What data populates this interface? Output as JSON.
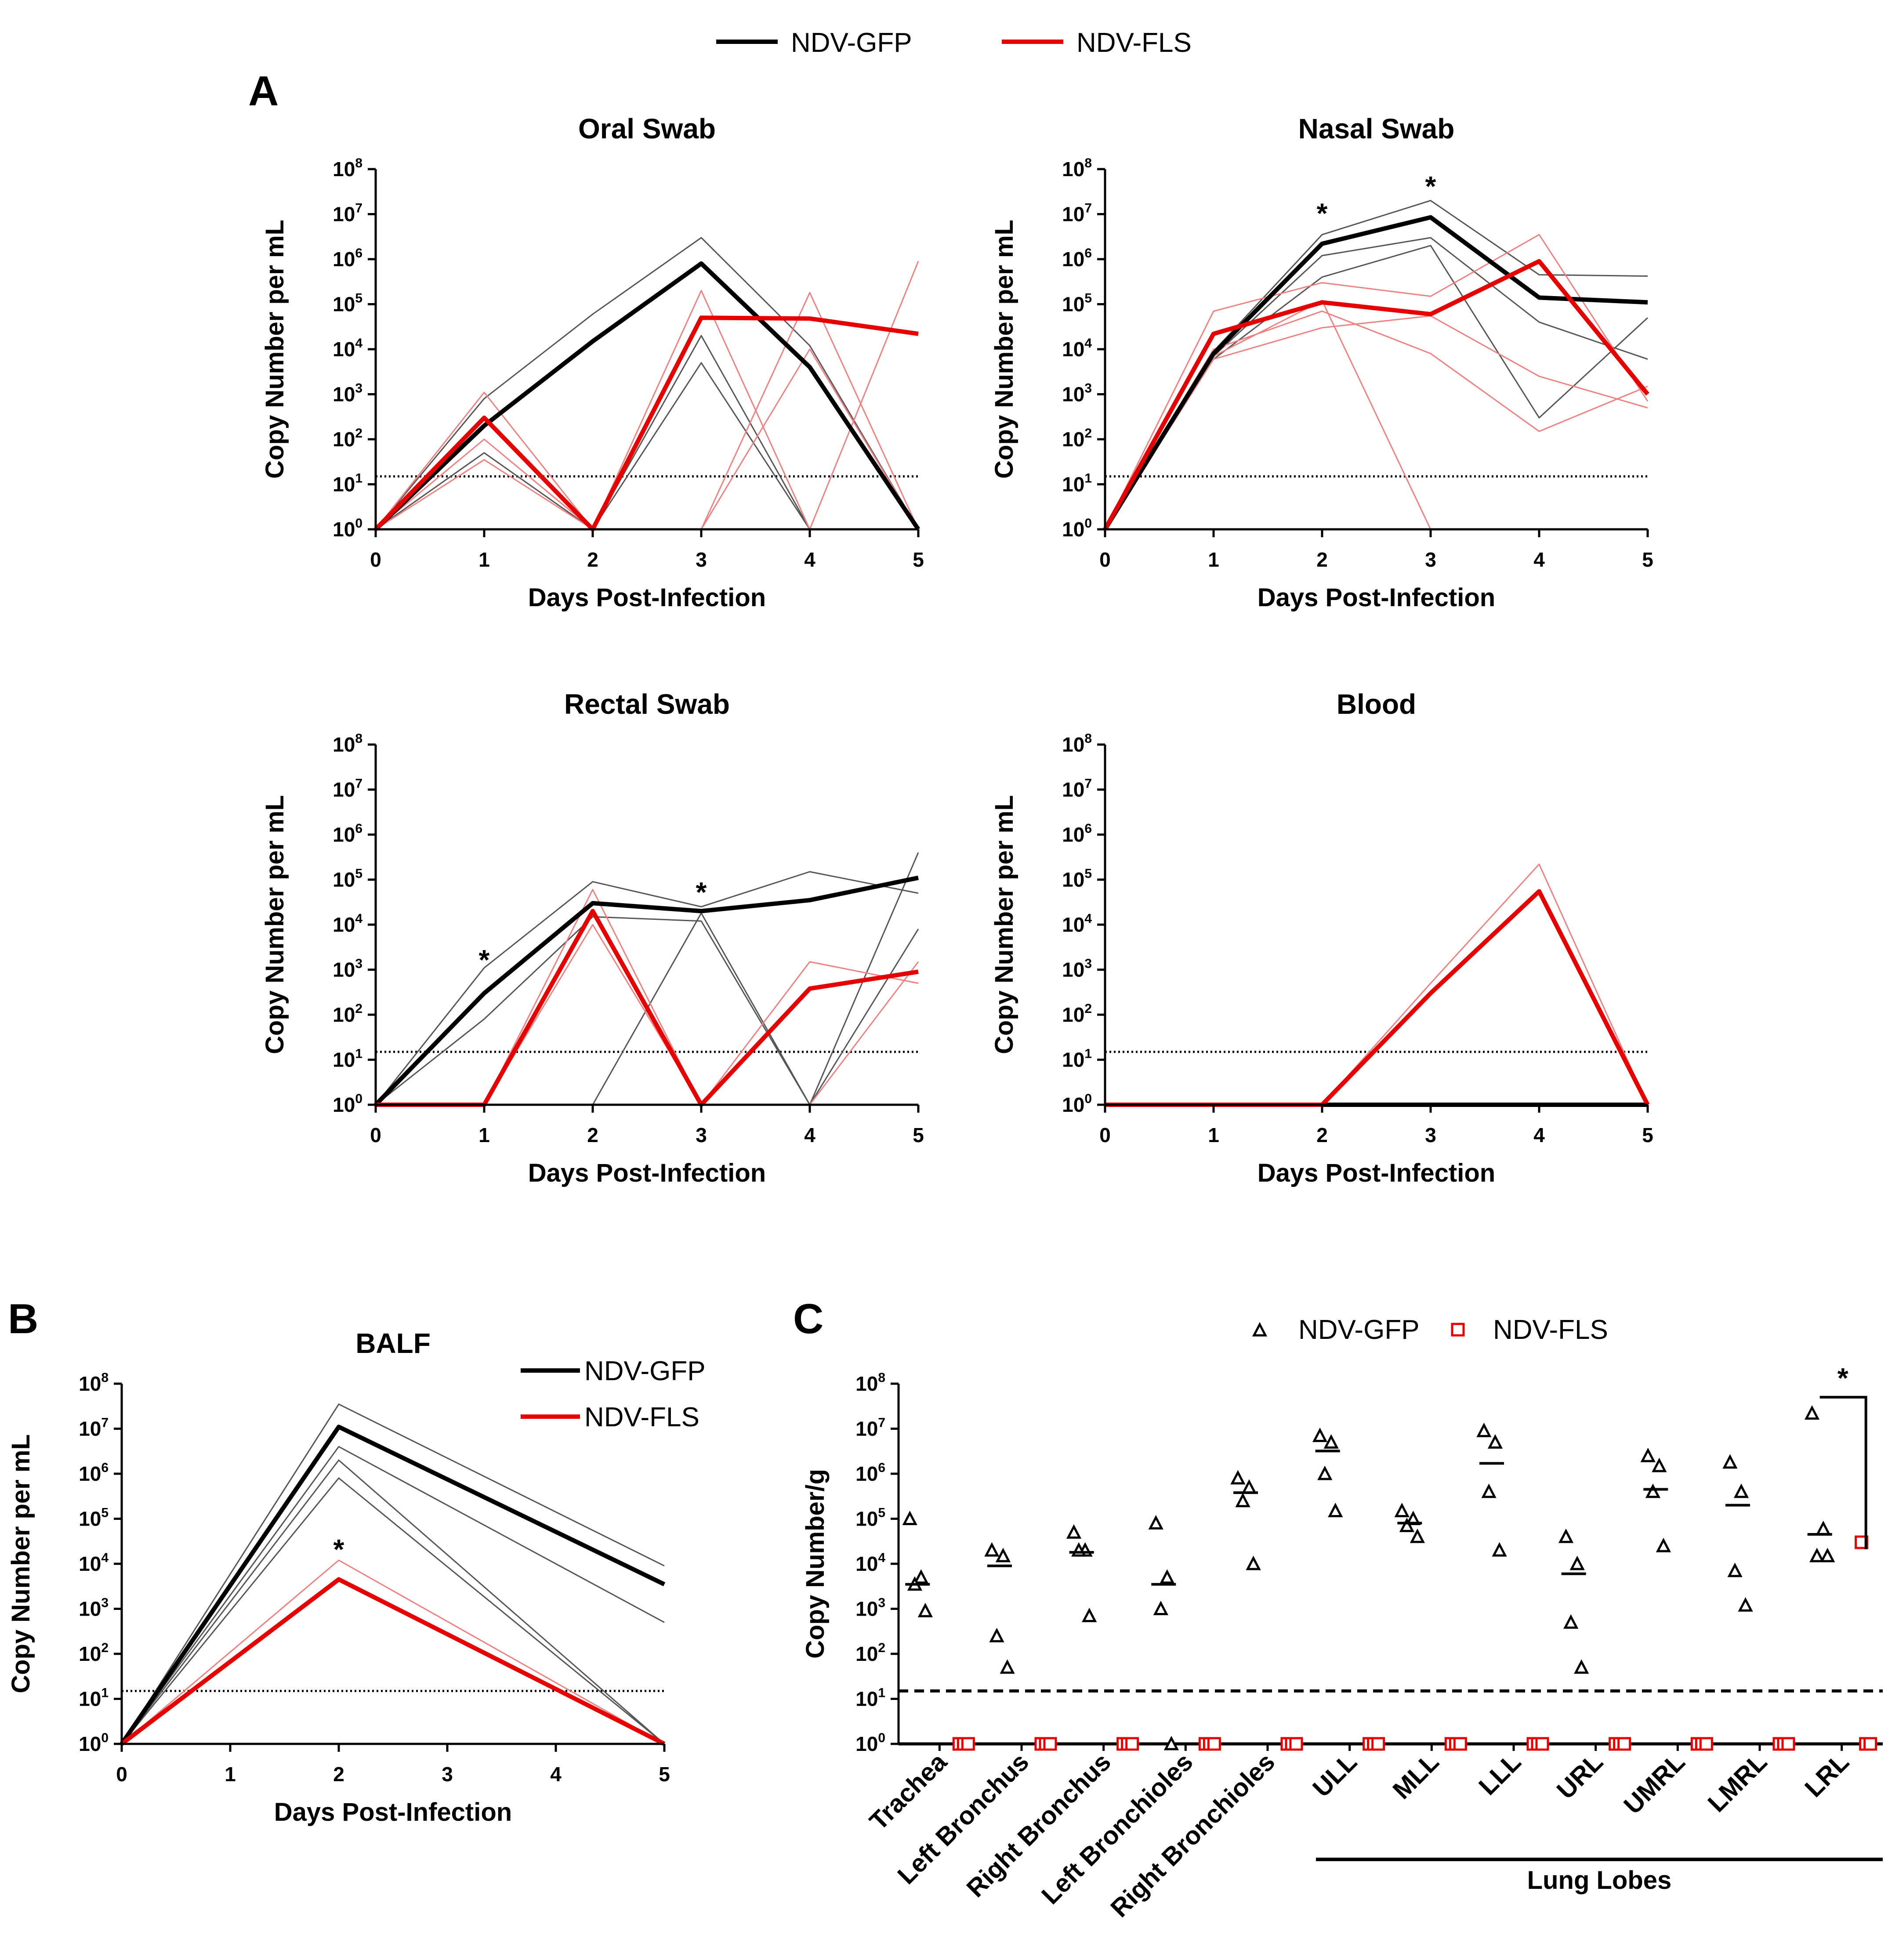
{
  "figure": {
    "panel_letters": {
      "a": "A",
      "b": "B",
      "c": "C"
    },
    "legend": {
      "top": [
        {
          "label": "NDV-GFP",
          "color": "#000000"
        },
        {
          "label": "NDV-FLS",
          "color": "#e60000"
        }
      ],
      "balf": [
        {
          "label": "NDV-GFP",
          "color": "#000000"
        },
        {
          "label": "NDV-FLS",
          "color": "#e60000"
        }
      ],
      "tissue": [
        {
          "label": "NDV-GFP",
          "color": "#000000",
          "marker": "triangle"
        },
        {
          "label": "NDV-FLS",
          "color": "#e60000",
          "marker": "square"
        }
      ]
    },
    "lung_lobes_label": "Lung Lobes",
    "colors": {
      "gfp": "#000000",
      "fls": "#e60000",
      "gfp_thin": "#555555",
      "fls_thin": "#f08080"
    }
  },
  "chart_data": [
    {
      "id": "oral",
      "type": "line",
      "title": "Oral Swab",
      "xlabel": "Days Post-Infection",
      "ylabel": "Copy Number per mL",
      "yscale": "log10",
      "ylim_exp": [
        0,
        8
      ],
      "xlim": [
        0,
        5
      ],
      "x": [
        0,
        1,
        2,
        3,
        4,
        5
      ],
      "limit_of_detection": 15,
      "series": [
        {
          "name": "NDV-GFP mean",
          "group": "gfp",
          "values": [
            1,
            200,
            15000,
            800000,
            4000,
            1
          ]
        },
        {
          "name": "NDV-FLS mean",
          "group": "fls",
          "values": [
            1,
            300,
            1,
            50000,
            48000,
            22000
          ]
        },
        {
          "name": "NDV-GFP subject",
          "group": "gfp",
          "individual": true,
          "values": [
            1,
            800,
            60000,
            3000000,
            12000,
            1
          ]
        },
        {
          "name": "NDV-GFP subject",
          "group": "gfp",
          "individual": true,
          "values": [
            1,
            50,
            1,
            20000,
            1,
            1
          ]
        },
        {
          "name": "NDV-GFP subject",
          "group": "gfp",
          "individual": true,
          "values": [
            1,
            1,
            1,
            5000,
            1,
            1
          ]
        },
        {
          "name": "NDV-FLS subject",
          "group": "fls",
          "individual": true,
          "values": [
            1,
            1100,
            1,
            200000,
            1,
            1
          ]
        },
        {
          "name": "NDV-FLS subject",
          "group": "fls",
          "individual": true,
          "values": [
            1,
            35,
            1,
            1,
            180000,
            1
          ]
        },
        {
          "name": "NDV-FLS subject",
          "group": "fls",
          "individual": true,
          "values": [
            1,
            100,
            1,
            1,
            10000,
            1
          ]
        },
        {
          "name": "NDV-FLS subject",
          "group": "fls",
          "individual": true,
          "values": [
            1,
            1,
            1,
            1,
            1,
            900000
          ]
        }
      ],
      "annotations": []
    },
    {
      "id": "nasal",
      "type": "line",
      "title": "Nasal Swab",
      "xlabel": "Days Post-Infection",
      "ylabel": "Copy Number per mL",
      "yscale": "log10",
      "ylim_exp": [
        0,
        8
      ],
      "xlim": [
        0,
        5
      ],
      "x": [
        0,
        1,
        2,
        3,
        4,
        5
      ],
      "limit_of_detection": 15,
      "series": [
        {
          "name": "NDV-GFP mean",
          "group": "gfp",
          "values": [
            1,
            8000,
            2200000,
            8500000,
            140000,
            110000
          ]
        },
        {
          "name": "NDV-FLS mean",
          "group": "fls",
          "values": [
            1,
            22000,
            110000,
            60000,
            900000,
            1000
          ]
        },
        {
          "name": "NDV-GFP subject",
          "group": "gfp",
          "individual": true,
          "values": [
            1,
            9000,
            3500000,
            20000000,
            450000,
            420000
          ]
        },
        {
          "name": "NDV-GFP subject",
          "group": "gfp",
          "individual": true,
          "values": [
            1,
            7000,
            1200000,
            3000000,
            40000,
            6000
          ]
        },
        {
          "name": "NDV-GFP subject",
          "group": "gfp",
          "individual": true,
          "values": [
            1,
            6000,
            400000,
            2000000,
            300,
            50000
          ]
        },
        {
          "name": "NDV-FLS subject",
          "group": "fls",
          "individual": true,
          "values": [
            1,
            70000,
            300000,
            150000,
            3500000,
            700
          ]
        },
        {
          "name": "NDV-FLS subject",
          "group": "fls",
          "individual": true,
          "values": [
            1,
            10000,
            70000,
            8000,
            150,
            1500
          ]
        },
        {
          "name": "NDV-FLS subject",
          "group": "fls",
          "individual": true,
          "values": [
            1,
            6000,
            30000,
            55000,
            2500,
            500
          ]
        },
        {
          "name": "NDV-FLS subject",
          "group": "fls",
          "individual": true,
          "values": [
            1,
            7000,
            120000,
            1,
            1,
            1
          ]
        }
      ],
      "annotations": [
        {
          "x": 2,
          "text": "*",
          "exp": 7.1
        },
        {
          "x": 3,
          "text": "*",
          "exp": 7.7
        }
      ]
    },
    {
      "id": "rectal",
      "type": "line",
      "title": "Rectal Swab",
      "xlabel": "Days Post-Infection",
      "ylabel": "Copy Number per mL",
      "yscale": "log10",
      "ylim_exp": [
        0,
        8
      ],
      "xlim": [
        0,
        5
      ],
      "x": [
        0,
        1,
        2,
        3,
        4,
        5
      ],
      "limit_of_detection": 15,
      "series": [
        {
          "name": "NDV-GFP mean",
          "group": "gfp",
          "values": [
            1,
            300,
            30000,
            20000,
            35000,
            110000
          ]
        },
        {
          "name": "NDV-FLS mean",
          "group": "fls",
          "values": [
            1,
            1,
            20000,
            1,
            380,
            900
          ]
        },
        {
          "name": "NDV-GFP subject",
          "group": "gfp",
          "individual": true,
          "values": [
            1,
            1100,
            90000,
            25000,
            150000,
            50000
          ]
        },
        {
          "name": "NDV-GFP subject",
          "group": "gfp",
          "individual": true,
          "values": [
            1,
            80,
            15000,
            12000,
            1,
            400000
          ]
        },
        {
          "name": "NDV-GFP subject",
          "group": "gfp",
          "individual": true,
          "values": [
            1,
            1,
            1,
            18000,
            1,
            8000
          ]
        },
        {
          "name": "NDV-FLS subject",
          "group": "fls",
          "individual": true,
          "values": [
            1,
            1,
            60000,
            1,
            1500,
            500
          ]
        },
        {
          "name": "NDV-FLS subject",
          "group": "fls",
          "individual": true,
          "values": [
            1,
            1,
            10000,
            1,
            1,
            1500
          ]
        },
        {
          "name": "NDV-FLS subject",
          "group": "fls",
          "individual": true,
          "values": [
            1,
            1,
            1,
            1,
            1,
            1
          ]
        }
      ],
      "annotations": [
        {
          "x": 1,
          "text": "*",
          "exp": 3.3
        },
        {
          "x": 3,
          "text": "*",
          "exp": 4.8
        }
      ]
    },
    {
      "id": "blood",
      "type": "line",
      "title": "Blood",
      "xlabel": "Days Post-Infection",
      "ylabel": "Copy Number per mL",
      "yscale": "log10",
      "ylim_exp": [
        0,
        8
      ],
      "xlim": [
        0,
        5
      ],
      "x": [
        0,
        1,
        2,
        3,
        4,
        5
      ],
      "limit_of_detection": 15,
      "series": [
        {
          "name": "NDV-GFP mean",
          "group": "gfp",
          "values": [
            1,
            1,
            1,
            1,
            1,
            1
          ]
        },
        {
          "name": "NDV-FLS mean",
          "group": "fls",
          "values": [
            1,
            1,
            1,
            300,
            55000,
            1
          ]
        },
        {
          "name": "NDV-FLS subject",
          "group": "fls",
          "individual": true,
          "values": [
            1,
            1,
            1,
            500,
            220000,
            1
          ]
        }
      ],
      "annotations": []
    },
    {
      "id": "balf",
      "type": "line",
      "title": "BALF",
      "xlabel": "Days Post-Infection",
      "ylabel": "Copy Number per mL",
      "yscale": "log10",
      "ylim_exp": [
        0,
        8
      ],
      "xlim": [
        0,
        5
      ],
      "x": [
        0,
        2,
        5
      ],
      "limit_of_detection": 15,
      "series": [
        {
          "name": "NDV-GFP mean",
          "group": "gfp",
          "values": [
            1,
            11000000,
            3500
          ]
        },
        {
          "name": "NDV-FLS mean",
          "group": "fls",
          "values": [
            1,
            4500,
            1
          ]
        },
        {
          "name": "NDV-GFP subject",
          "group": "gfp",
          "individual": true,
          "values": [
            1,
            35000000,
            9000
          ]
        },
        {
          "name": "NDV-GFP subject",
          "group": "gfp",
          "individual": true,
          "values": [
            1,
            4000000,
            500
          ]
        },
        {
          "name": "NDV-GFP subject",
          "group": "gfp",
          "individual": true,
          "values": [
            1,
            2000000,
            1
          ]
        },
        {
          "name": "NDV-GFP subject",
          "group": "gfp",
          "individual": true,
          "values": [
            1,
            800000,
            1
          ]
        },
        {
          "name": "NDV-FLS subject",
          "group": "fls",
          "individual": true,
          "values": [
            1,
            12000,
            1
          ]
        }
      ],
      "annotations": [
        {
          "x": 2,
          "text": "*",
          "exp": 4.4
        }
      ]
    },
    {
      "id": "tissue",
      "type": "scatter",
      "title": "",
      "xlabel": "",
      "ylabel": "Copy Number/g",
      "yscale": "log10",
      "ylim_exp": [
        0,
        8
      ],
      "limit_of_detection": 15,
      "categories": [
        "Trachea",
        "Left Bronchus",
        "Right Bronchus",
        "Left Bronchioles",
        "Right Bronchioles",
        "ULL",
        "MLL",
        "LLL",
        "URL",
        "UMRL",
        "LMRL",
        "LRL"
      ],
      "gfp_points": [
        [
          100000,
          5000,
          3500,
          900
        ],
        [
          20000,
          15000,
          250,
          50
        ],
        [
          50000,
          20000,
          20000,
          700
        ],
        [
          80000,
          5000,
          1000,
          1
        ],
        [
          800000,
          500000,
          250000,
          10000
        ],
        [
          7000000,
          5000000,
          1000000,
          150000
        ],
        [
          150000,
          100000,
          70000,
          40000
        ],
        [
          9000000,
          5000000,
          400000,
          20000
        ],
        [
          40000,
          10000,
          500,
          50
        ],
        [
          2500000,
          1500000,
          400000,
          25000
        ],
        [
          1800000,
          400000,
          7000,
          1200
        ],
        [
          22000000,
          60000,
          15000,
          15000
        ]
      ],
      "gfp_means": [
        3500,
        9000,
        18000,
        3500,
        380000,
        3200000,
        80000,
        1700000,
        6000,
        450000,
        200000,
        45000
      ],
      "fls_points": [
        [
          1,
          1,
          1
        ],
        [
          1,
          1,
          1
        ],
        [
          1,
          1,
          1
        ],
        [
          1,
          1,
          1
        ],
        [
          1,
          1,
          1
        ],
        [
          1,
          1,
          1
        ],
        [
          1,
          1,
          1
        ],
        [
          1,
          1,
          1
        ],
        [
          1,
          1,
          1
        ],
        [
          1,
          1,
          1
        ],
        [
          1,
          1,
          1
        ],
        [
          30000,
          1,
          1
        ]
      ],
      "annotations": [
        {
          "category": "LRL",
          "text": "*"
        }
      ]
    }
  ]
}
